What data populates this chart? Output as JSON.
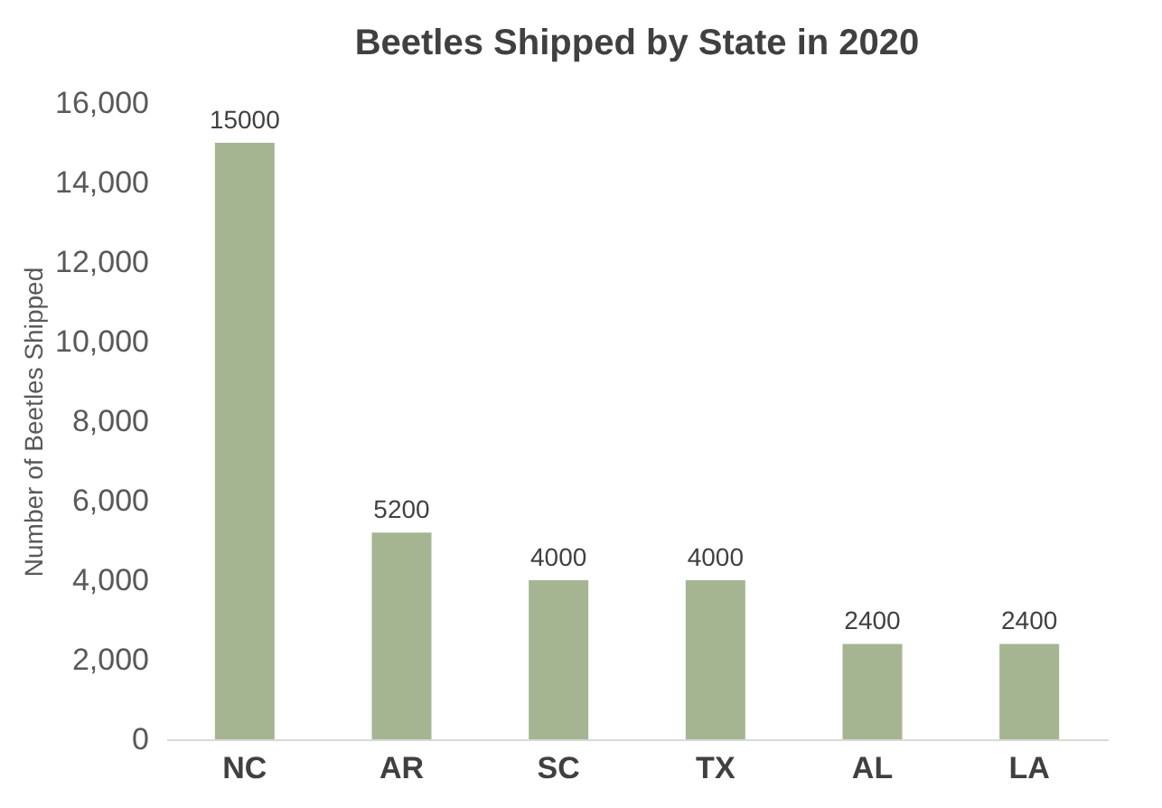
{
  "chart_data": {
    "type": "bar",
    "title": "Beetles Shipped by State in 2020",
    "ylabel": "Number of Beetles Shipped",
    "categories": [
      "NC",
      "AR",
      "SC",
      "TX",
      "AL",
      "LA"
    ],
    "values": [
      15000,
      5200,
      4000,
      4000,
      2400,
      2400
    ],
    "color": "#a5b592",
    "ylim": [
      0,
      16000
    ],
    "yticks": [
      0,
      {
        "value": 2000,
        "label": "2,000"
      },
      {
        "value": 4000,
        "label": "4,000"
      },
      {
        "value": 6000,
        "label": "6,000"
      },
      {
        "value": 8000,
        "label": "8,000"
      },
      {
        "value": 10000,
        "label": "10,000"
      },
      {
        "value": 12000,
        "label": "12,000"
      },
      {
        "value": 14000,
        "label": "14,000"
      },
      {
        "value": 16000,
        "label": "16,000"
      }
    ],
    "grid": false,
    "data_labels": true
  }
}
